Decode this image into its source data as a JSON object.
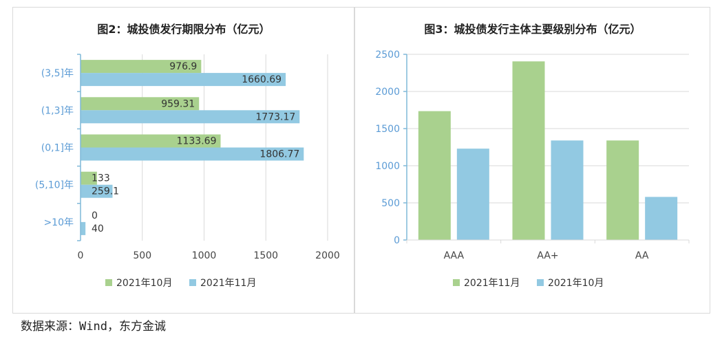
{
  "source_note": "数据来源：Wind，东方金诚",
  "colors": {
    "green": "#a9d18e",
    "blue": "#92c9e2",
    "axis": "#7fb8d8",
    "tick_text": "#5b9bd5",
    "grid": "#d9d9d9"
  },
  "chart_data": [
    {
      "type": "bar",
      "orientation": "horizontal",
      "title": "图2：城投债发行期限分布（亿元）",
      "categories": [
        "(3,5]年",
        "(1,3]年",
        "(0,1]年",
        "(5,10]年",
        ">10年"
      ],
      "series": [
        {
          "name": "2021年10月",
          "color": "#a9d18e",
          "values": [
            976.9,
            959.31,
            1133.69,
            133,
            0
          ],
          "labels": [
            "976.9",
            "959.31",
            "1133.69",
            "133",
            "0"
          ]
        },
        {
          "name": "2021年11月",
          "color": "#92c9e2",
          "values": [
            1660.69,
            1773.17,
            1806.77,
            259.1,
            40
          ],
          "labels": [
            "1660.69",
            "1773.17",
            "1806.77",
            "259.1",
            "40"
          ]
        }
      ],
      "xlim": [
        0,
        2000
      ],
      "xticks": [
        0,
        500,
        1000,
        1500,
        2000
      ],
      "grid": true,
      "legend": "bottom"
    },
    {
      "type": "bar",
      "title": "图3：城投债发行主体主要级别分布（亿元）",
      "categories": [
        "AAA",
        "AA+",
        "AA"
      ],
      "series": [
        {
          "name": "2021年11月",
          "color": "#a9d18e",
          "values": [
            1735,
            2405,
            1340
          ]
        },
        {
          "name": "2021年10月",
          "color": "#92c9e2",
          "values": [
            1230,
            1340,
            580
          ]
        }
      ],
      "ylim": [
        0,
        2500
      ],
      "yticks": [
        0,
        500,
        1000,
        1500,
        2000,
        2500
      ],
      "grid": true,
      "legend": "bottom"
    }
  ]
}
